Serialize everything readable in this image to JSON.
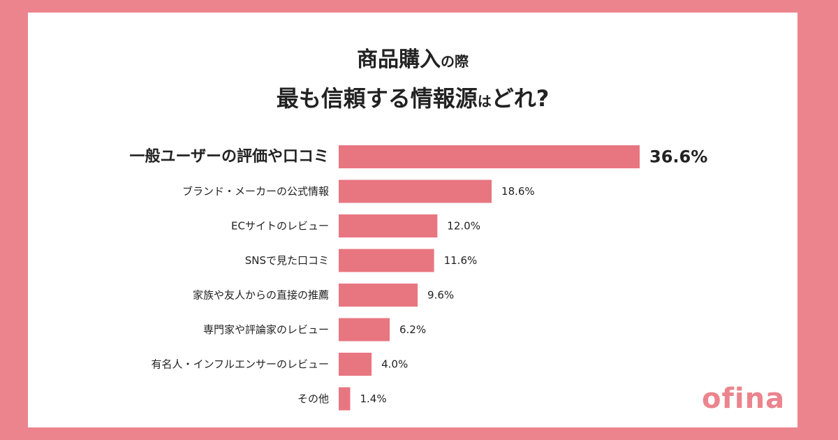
{
  "title": {
    "line1_main": "商品購入",
    "line1_small": "の際",
    "line2_part1": "最も信頼する情報源",
    "line2_small": "は",
    "line2_part2": "どれ?"
  },
  "brand": "ofina",
  "colors": {
    "bar": "#e87680",
    "frame": "#ec848d",
    "text": "#222222"
  },
  "chart_data": {
    "type": "bar",
    "orientation": "horizontal",
    "categories": [
      "一般ユーザーの評価や口コミ",
      "ブランド・メーカーの公式情報",
      "ECサイトのレビュー",
      "SNSで見た口コミ",
      "家族や友人からの直接の推薦",
      "専門家や評論家のレビュー",
      "有名人・インフルエンサーのレビュー",
      "その他"
    ],
    "values": [
      36.6,
      18.6,
      12.0,
      11.6,
      9.6,
      6.2,
      4.0,
      1.4
    ],
    "labels": [
      "36.6%",
      "18.6%",
      "12.0%",
      "11.6%",
      "9.6%",
      "6.2%",
      "4.0%",
      "1.4%"
    ],
    "xlim": [
      0,
      36.6
    ],
    "grid": false,
    "legend": false
  }
}
